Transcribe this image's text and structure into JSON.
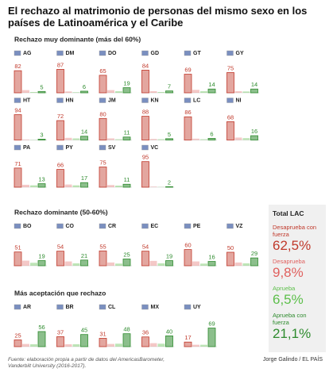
{
  "chart_data": {
    "type": "bar",
    "title": "El rechazo al matrimonio de personas del mismo sexo en los países de Latinoamérica y el Caribe",
    "ylim": [
      0,
      100
    ],
    "series": [
      {
        "name": "Desaprueba con fuerza",
        "color": "#c0392b"
      },
      {
        "name": "Desaprueba",
        "color": "#e0605e"
      },
      {
        "name": "Aprueba",
        "color": "#5cbf4a"
      },
      {
        "name": "Aprueba con fuerza",
        "color": "#2e8b2e"
      }
    ],
    "sections": [
      {
        "title": "Rechazo muy dominante (más del 60%)",
        "panels": [
          {
            "label": "AG",
            "values": [
              82,
              10,
              3,
              5
            ]
          },
          {
            "label": "DM",
            "values": [
              87,
              5,
              2,
              6
            ]
          },
          {
            "label": "DO",
            "values": [
              65,
              10,
              6,
              19
            ]
          },
          {
            "label": "GD",
            "values": [
              84,
              6,
              3,
              7
            ]
          },
          {
            "label": "GT",
            "values": [
              69,
              11,
              6,
              14
            ]
          },
          {
            "label": "GY",
            "values": [
              75,
              6,
              5,
              14
            ]
          },
          {
            "label": "HT",
            "values": [
              94,
              2,
              1,
              3
            ]
          },
          {
            "label": "HN",
            "values": [
              72,
              8,
              6,
              14
            ]
          },
          {
            "label": "JM",
            "values": [
              80,
              6,
              3,
              11
            ]
          },
          {
            "label": "KN",
            "values": [
              88,
              4,
              3,
              5
            ]
          },
          {
            "label": "LC",
            "values": [
              86,
              5,
              3,
              6
            ]
          },
          {
            "label": "NI",
            "values": [
              68,
              9,
              7,
              16
            ]
          },
          {
            "label": "PA",
            "values": [
              71,
              9,
              7,
              13
            ]
          },
          {
            "label": "PY",
            "values": [
              66,
              10,
              7,
              17
            ]
          },
          {
            "label": "SV",
            "values": [
              75,
              8,
              6,
              11
            ]
          },
          {
            "label": "VC",
            "values": [
              95,
              2,
              1,
              2
            ]
          }
        ]
      },
      {
        "title": "Rechazo dominante (50-60%)",
        "panels": [
          {
            "label": "BO",
            "values": [
              51,
              19,
              11,
              19
            ]
          },
          {
            "label": "CO",
            "values": [
              54,
              16,
              9,
              21
            ]
          },
          {
            "label": "CR",
            "values": [
              55,
              12,
              8,
              25
            ]
          },
          {
            "label": "EC",
            "values": [
              54,
              18,
              9,
              19
            ]
          },
          {
            "label": "PE",
            "values": [
              60,
              16,
              8,
              16
            ]
          },
          {
            "label": "VZ",
            "values": [
              50,
              12,
              9,
              29
            ]
          }
        ]
      },
      {
        "title": "Más aceptación que rechazo",
        "panels": [
          {
            "label": "AR",
            "values": [
              25,
              10,
              9,
              56
            ]
          },
          {
            "label": "BR",
            "values": [
              37,
              9,
              9,
              45
            ]
          },
          {
            "label": "CL",
            "values": [
              31,
              10,
              11,
              48
            ]
          },
          {
            "label": "MX",
            "values": [
              36,
              13,
              11,
              40
            ]
          },
          {
            "label": "UY",
            "values": [
              17,
              7,
              7,
              69
            ]
          }
        ]
      }
    ],
    "total": {
      "title": "Total LAC",
      "values": [
        62.5,
        9.8,
        6.5,
        21.1
      ],
      "value_labels": [
        "62,5%",
        "9,8%",
        "6,5%",
        "21,1%"
      ]
    },
    "source": "Fuente: elaboración propia a partir de datos del AmericasBarometer, Vanderbilt University (2016-2017).",
    "credit": "Jorge Galindo / EL PAÍS"
  }
}
